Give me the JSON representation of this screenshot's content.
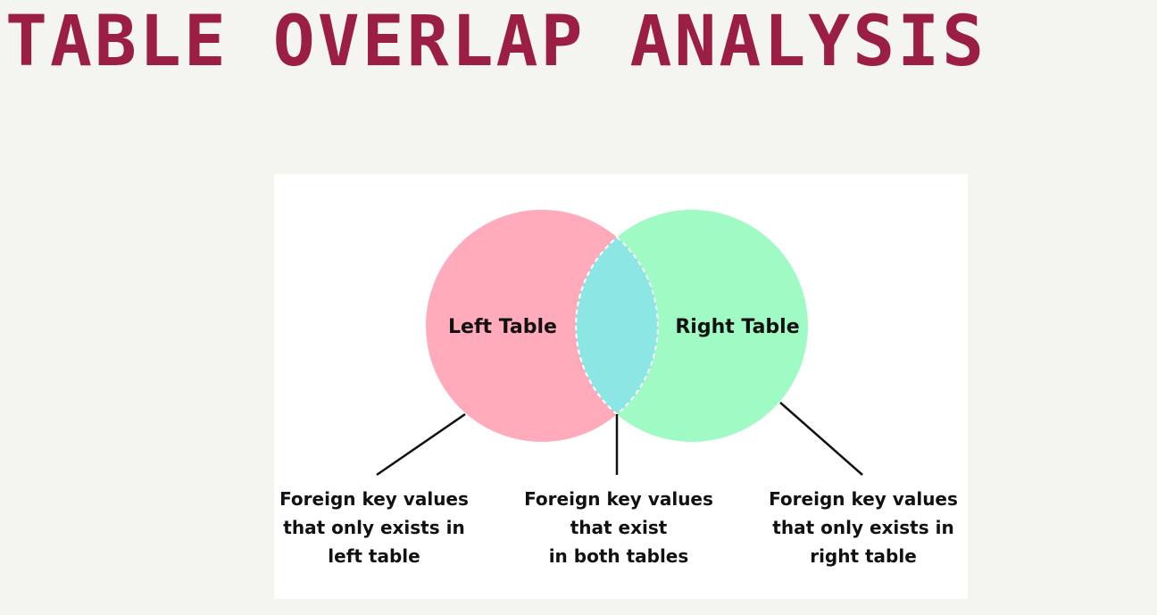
{
  "title": "TABLE OVERLAP ANALYSIS",
  "colors": {
    "title": "#9b1f45",
    "background": "#f5f5f0",
    "card": "#ffffff",
    "left_circle": "#ffabbb",
    "right_circle": "#a0fac4",
    "intersection": "#8ce6e4",
    "outline": "#ffffff",
    "lines": "#111111"
  },
  "venn": {
    "left_label": "Left Table",
    "right_label": "Right Table"
  },
  "callouts": {
    "left": "Foreign key values\nthat only exists in\nleft table",
    "middle": "Foreign key values\nthat exist\nin both tables",
    "right": "Foreign key values\nthat only exists in\nright table"
  }
}
